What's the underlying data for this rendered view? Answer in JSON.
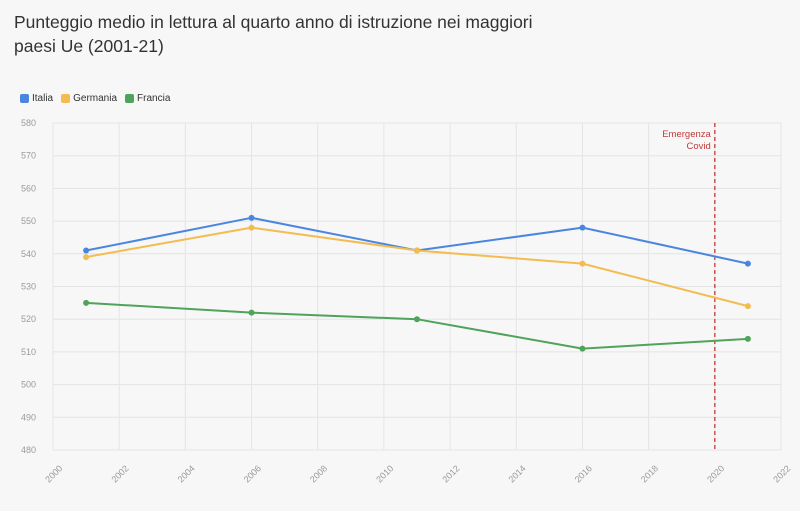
{
  "title_line1": "Punteggio medio in lettura al quarto anno di istruzione nei maggiori",
  "title_line2": "paesi Ue (2001-21)",
  "colors": {
    "Italia": "#4a86e0",
    "Germania": "#f3bc50",
    "Francia": "#4fa35a",
    "covid_line": "#c33a3a"
  },
  "chart_data": {
    "type": "line",
    "title": "Punteggio medio in lettura al quarto anno di istruzione nei maggiori paesi Ue (2001-21)",
    "xlabel": "",
    "ylabel": "",
    "xlim": [
      2000,
      2022
    ],
    "ylim": [
      480,
      580
    ],
    "x_ticks": [
      2000,
      2002,
      2004,
      2006,
      2008,
      2010,
      2012,
      2014,
      2016,
      2018,
      2020,
      2022
    ],
    "y_ticks": [
      480,
      490,
      500,
      510,
      520,
      530,
      540,
      550,
      560,
      570,
      580
    ],
    "grid": true,
    "legend_position": "top-left",
    "x": [
      2001,
      2006,
      2011,
      2016,
      2021
    ],
    "series": [
      {
        "name": "Italia",
        "values": [
          541,
          551,
          541,
          548,
          537
        ]
      },
      {
        "name": "Germania",
        "values": [
          539,
          548,
          541,
          537,
          524
        ]
      },
      {
        "name": "Francia",
        "values": [
          525,
          522,
          520,
          511,
          514
        ]
      }
    ],
    "annotations": [
      {
        "x": 2020,
        "label_line1": "Emergenza",
        "label_line2": "Covid",
        "style": "dashed-vertical"
      }
    ]
  }
}
